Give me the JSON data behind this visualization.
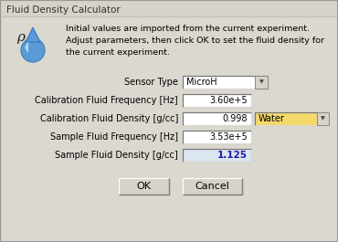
{
  "title": "Fluid Density Calculator",
  "bg_outer": "#d6d3cb",
  "bg_dialog": "#dbd8d0",
  "white": "#ffffff",
  "yellow": "#f5d96b",
  "text_color": "#000000",
  "blue_value": "#1a1aaa",
  "label_color": "#333333",
  "border_light": "#ffffff",
  "border_dark": "#808080",
  "border_mid": "#a0a0a0",
  "btn_face": "#d6d3cb",
  "info_line1": "Initial values are imported from the current experiment.",
  "info_line2": "Adjust parameters, then click OK to set the fluid density for",
  "info_line3": "the current experiment.",
  "sensor_label": "Sensor Type",
  "sensor_value": "MicroH",
  "cal_freq_label": "Calibration Fluid Frequency [Hz]",
  "cal_freq_value": "3.60e+5",
  "cal_density_label": "Calibration Fluid Density [g/cc]",
  "cal_density_value": "0.998",
  "cal_density_dropdown": "Water",
  "sample_freq_label": "Sample Fluid Frequency [Hz]",
  "sample_freq_value": "3.53e+5",
  "sample_density_label": "Sample Fluid Density [g/cc]",
  "sample_density_value": "1.125",
  "ok_label": "OK",
  "cancel_label": "Cancel",
  "figw": 3.7,
  "figh": 2.65,
  "dpi": 100
}
